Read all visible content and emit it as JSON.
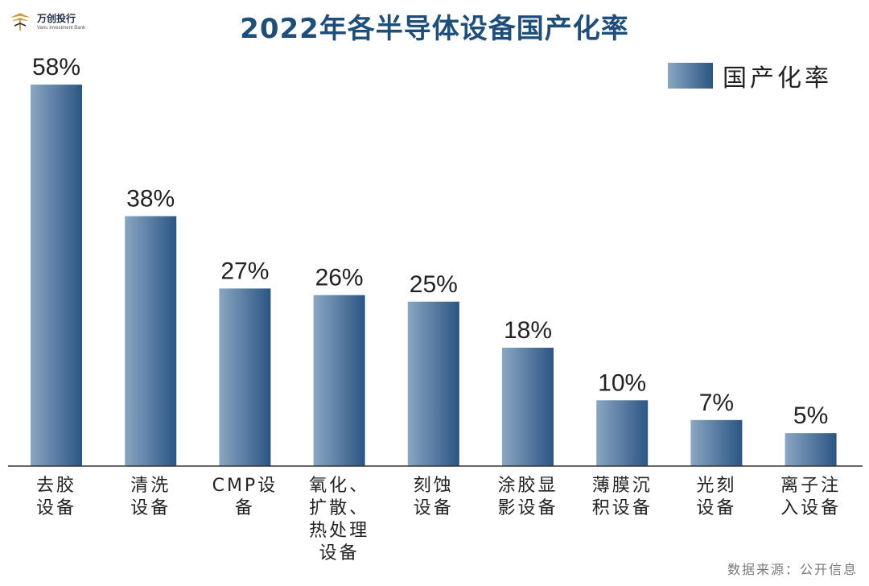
{
  "logo": {
    "name": "万创投行",
    "sub": "Vanu Investment Bank"
  },
  "chart_data": {
    "type": "bar",
    "title": "2022年各半导体设备国产化率",
    "categories": [
      [
        "去胶",
        "设备"
      ],
      [
        "清洗",
        "设备"
      ],
      [
        "CMP设",
        "备"
      ],
      [
        "氧化、",
        "扩散、",
        "热处理",
        "设备"
      ],
      [
        "刻蚀",
        "设备"
      ],
      [
        "涂胶显",
        "影设备"
      ],
      [
        "薄膜沉",
        "积设备"
      ],
      [
        "光刻",
        "设备"
      ],
      [
        "离子注",
        "入设备"
      ]
    ],
    "series": [
      {
        "name": "国产化率",
        "values": [
          58,
          38,
          27,
          26,
          25,
          18,
          10,
          7,
          5
        ]
      }
    ],
    "value_labels": [
      "58%",
      "38%",
      "27%",
      "26%",
      "25%",
      "18%",
      "10%",
      "7%",
      "5%"
    ],
    "unit": "%",
    "ylim": [
      0,
      60
    ],
    "grid": false,
    "legend_position": "top-right",
    "colors": {
      "bar_light": "#8aa6c2",
      "bar_dark": "#2a5584",
      "title": "#1f4e79"
    }
  },
  "source": "数据来源：公开信息"
}
